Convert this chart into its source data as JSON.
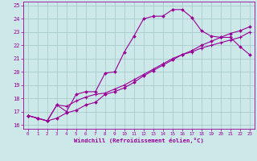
{
  "xlabel": "Windchill (Refroidissement éolien,°C)",
  "bg_color": "#cce8e8",
  "grid_color": "#aacccc",
  "line_color": "#990099",
  "xlim": [
    -0.5,
    23.5
  ],
  "ylim": [
    15.7,
    25.3
  ],
  "xticks": [
    0,
    1,
    2,
    3,
    4,
    5,
    6,
    7,
    8,
    9,
    10,
    11,
    12,
    13,
    14,
    15,
    16,
    17,
    18,
    19,
    20,
    21,
    22,
    23
  ],
  "yticks": [
    16,
    17,
    18,
    19,
    20,
    21,
    22,
    23,
    24,
    25
  ],
  "line1_x": [
    0,
    1,
    2,
    3,
    4,
    5,
    6,
    7,
    8,
    9,
    10,
    11,
    12,
    13,
    14,
    15,
    16,
    17,
    18,
    19,
    20,
    21,
    22,
    23
  ],
  "line1_y": [
    16.7,
    16.5,
    16.3,
    17.5,
    17.0,
    18.3,
    18.5,
    18.5,
    19.9,
    20.0,
    21.5,
    22.7,
    24.0,
    24.2,
    24.2,
    24.7,
    24.7,
    24.1,
    23.1,
    22.7,
    22.6,
    22.6,
    21.9,
    21.3
  ],
  "line2_x": [
    0,
    1,
    2,
    3,
    4,
    5,
    6,
    7,
    8,
    9,
    10,
    11,
    12,
    13,
    14,
    15,
    16,
    17,
    18,
    19,
    20,
    21,
    22,
    23
  ],
  "line2_y": [
    16.7,
    16.5,
    16.3,
    16.5,
    16.9,
    17.1,
    17.5,
    17.7,
    18.3,
    18.5,
    18.8,
    19.2,
    19.7,
    20.1,
    20.5,
    20.9,
    21.3,
    21.6,
    22.0,
    22.3,
    22.6,
    22.9,
    23.1,
    23.4
  ],
  "line3_x": [
    0,
    1,
    2,
    3,
    4,
    5,
    6,
    7,
    8,
    9,
    10,
    11,
    12,
    13,
    14,
    15,
    16,
    17,
    18,
    19,
    20,
    21,
    22,
    23
  ],
  "line3_y": [
    16.7,
    16.5,
    16.3,
    17.5,
    17.4,
    17.8,
    18.1,
    18.3,
    18.4,
    18.7,
    19.0,
    19.4,
    19.8,
    20.2,
    20.6,
    21.0,
    21.3,
    21.5,
    21.8,
    22.0,
    22.2,
    22.4,
    22.6,
    23.0
  ]
}
